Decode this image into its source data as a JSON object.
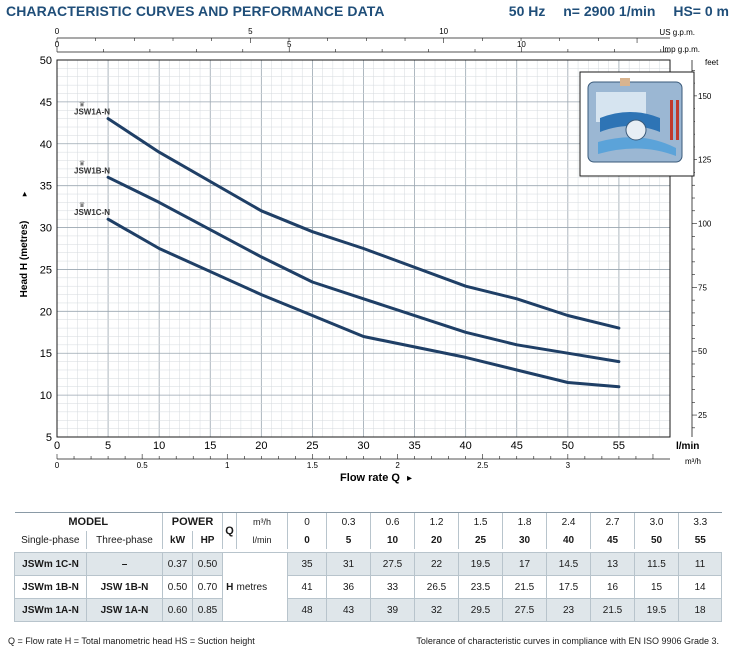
{
  "header": {
    "title": "CHARACTERISTIC CURVES AND PERFORMANCE DATA",
    "frequency": "50 Hz",
    "speed": "n= 2900  1/min",
    "suction": "HS= 0 m"
  },
  "chart_data": {
    "type": "line",
    "title": "",
    "xlabel": "Flow rate Q",
    "ylabel": "Head H (metres)",
    "x_unit": "l/min",
    "xlim": [
      0,
      60
    ],
    "ylim": [
      5,
      50
    ],
    "x_ticks": [
      0,
      5,
      10,
      15,
      20,
      25,
      30,
      35,
      40,
      45,
      50,
      55
    ],
    "y_ticks": [
      5,
      10,
      15,
      20,
      25,
      30,
      35,
      40,
      45,
      50
    ],
    "grid": true,
    "secondary_axes": {
      "top_us": {
        "unit": "US g.p.m.",
        "ticks": [
          0,
          5,
          10
        ]
      },
      "top_imp": {
        "unit": "Imp g.p.m.",
        "ticks": [
          0,
          5,
          10
        ]
      },
      "bottom_m3h": {
        "unit": "m³/h",
        "ticks": [
          0,
          0.5,
          1,
          1.5,
          2,
          2.5,
          3
        ]
      },
      "right_feet": {
        "unit": "feet",
        "ticks": [
          25,
          50,
          75,
          100,
          125,
          150
        ]
      }
    },
    "series": [
      {
        "name": "JSW1A-N",
        "x": [
          5,
          10,
          20,
          25,
          30,
          40,
          45,
          50,
          55
        ],
        "y": [
          43,
          39,
          32,
          29.5,
          27.5,
          23,
          21.5,
          19.5,
          18
        ]
      },
      {
        "name": "JSW1B-N",
        "x": [
          5,
          10,
          20,
          25,
          30,
          40,
          45,
          50,
          55
        ],
        "y": [
          36,
          33,
          26.5,
          23.5,
          21.5,
          17.5,
          16,
          15,
          14
        ]
      },
      {
        "name": "JSW1C-N",
        "x": [
          5,
          10,
          20,
          25,
          30,
          40,
          45,
          50,
          55
        ],
        "y": [
          31,
          27.5,
          22,
          19.5,
          17,
          14.5,
          13,
          11.5,
          11
        ]
      }
    ],
    "series_color": "#1f3f66"
  },
  "table": {
    "model_label": "MODEL",
    "power_label": "POWER",
    "q_label": "Q",
    "q_m3h_unit": "m³/h",
    "q_lmin_unit": "l/min",
    "single_phase": "Single-phase",
    "three_phase": "Three-phase",
    "kw": "kW",
    "hp": "HP",
    "h_label": "H",
    "metres": "metres",
    "q_m3h": [
      "0",
      "0.3",
      "0.6",
      "1.2",
      "1.5",
      "1.8",
      "2.4",
      "2.7",
      "3.0",
      "3.3"
    ],
    "q_lmin": [
      "0",
      "5",
      "10",
      "20",
      "25",
      "30",
      "40",
      "45",
      "50",
      "55"
    ],
    "rows": [
      {
        "single": "JSWm 1C-N",
        "three": "–",
        "kw": "0.37",
        "hp": "0.50",
        "h": [
          "35",
          "31",
          "27.5",
          "22",
          "19.5",
          "17",
          "14.5",
          "13",
          "11.5",
          "11"
        ]
      },
      {
        "single": "JSWm 1B-N",
        "three": "JSW 1B-N",
        "kw": "0.50",
        "hp": "0.70",
        "h": [
          "41",
          "36",
          "33",
          "26.5",
          "23.5",
          "21.5",
          "17.5",
          "16",
          "15",
          "14"
        ]
      },
      {
        "single": "JSWm 1A-N",
        "three": "JSW 1A-N",
        "kw": "0.60",
        "hp": "0.85",
        "h": [
          "48",
          "43",
          "39",
          "32",
          "29.5",
          "27.5",
          "23",
          "21.5",
          "19.5",
          "18"
        ]
      }
    ]
  },
  "footer": {
    "legend": "Q = Flow rate  H = Total manometric head  HS = Suction height",
    "tolerance": "Tolerance of characteristic curves in compliance with EN ISO 9906 Grade 3."
  }
}
